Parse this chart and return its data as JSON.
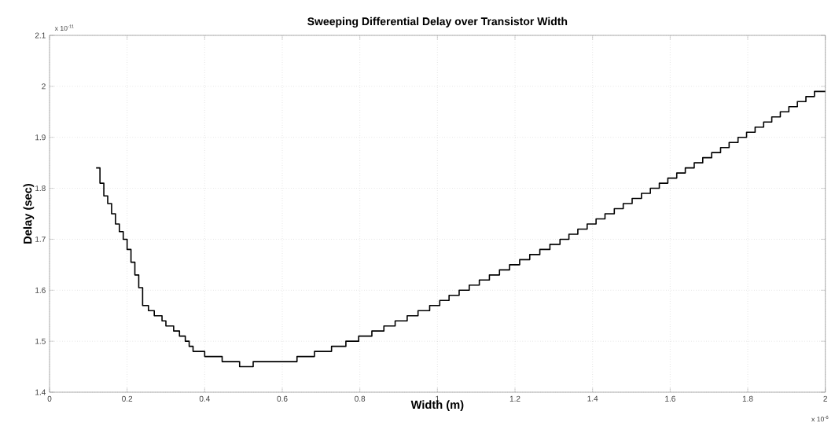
{
  "chart_data": {
    "type": "step",
    "title": "Sweeping Differential Delay over Transistor Width",
    "xlabel": "Width (m)",
    "ylabel": "Delay (sec)",
    "annotations": [
      "x 10$^{-11}$",
      "x 10$^{-6}$"
    ],
    "x": [
      0.12,
      0.13,
      0.14,
      0.15,
      0.16,
      0.17,
      0.18,
      0.19,
      0.2,
      0.21,
      0.22,
      0.23,
      0.24,
      0.255,
      0.27,
      0.29,
      0.3,
      0.32,
      0.335,
      0.35,
      0.36,
      0.37,
      0.4,
      0.445,
      0.49,
      0.525,
      0.638,
      0.683,
      0.727,
      0.764,
      0.797,
      0.831,
      0.862,
      0.891,
      0.922,
      0.95,
      0.98,
      1.006,
      1.03,
      1.056,
      1.082,
      1.108,
      1.134,
      1.16,
      1.186,
      1.212,
      1.238,
      1.264,
      1.29,
      1.316,
      1.339,
      1.362,
      1.386,
      1.409,
      1.432,
      1.456,
      1.479,
      1.502,
      1.526,
      1.549,
      1.572,
      1.594,
      1.617,
      1.639,
      1.662,
      1.684,
      1.707,
      1.73,
      1.752,
      1.775,
      1.797,
      1.819,
      1.841,
      1.862,
      1.884,
      1.906,
      1.928,
      1.95,
      1.972,
      2.0
    ],
    "values": [
      1.84,
      1.81,
      1.785,
      1.77,
      1.75,
      1.73,
      1.715,
      1.7,
      1.68,
      1.655,
      1.63,
      1.605,
      1.57,
      1.56,
      1.55,
      1.54,
      1.53,
      1.52,
      1.51,
      1.5,
      1.49,
      1.48,
      1.47,
      1.46,
      1.45,
      1.46,
      1.47,
      1.48,
      1.49,
      1.5,
      1.51,
      1.52,
      1.53,
      1.54,
      1.55,
      1.56,
      1.57,
      1.58,
      1.59,
      1.6,
      1.61,
      1.62,
      1.63,
      1.64,
      1.65,
      1.66,
      1.67,
      1.68,
      1.69,
      1.7,
      1.71,
      1.72,
      1.73,
      1.74,
      1.75,
      1.76,
      1.77,
      1.78,
      1.79,
      1.8,
      1.81,
      1.82,
      1.83,
      1.84,
      1.85,
      1.86,
      1.87,
      1.88,
      1.89,
      1.9,
      1.91,
      1.92,
      1.93,
      1.94,
      1.95,
      1.96,
      1.97,
      1.98,
      1.99,
      1.99
    ],
    "color": "#000000",
    "xlim": [
      0,
      2
    ],
    "xticks": [
      0,
      0.2,
      0.4,
      0.6,
      0.8,
      1,
      1.2,
      1.4,
      1.6,
      1.8,
      2
    ],
    "ylim": [
      1.4,
      2.1
    ],
    "yticks": [
      1.4,
      1.5,
      1.6,
      1.7,
      1.8,
      1.9,
      2,
      2.1
    ],
    "grid": true,
    "line_style": "solid",
    "marker": "none"
  }
}
